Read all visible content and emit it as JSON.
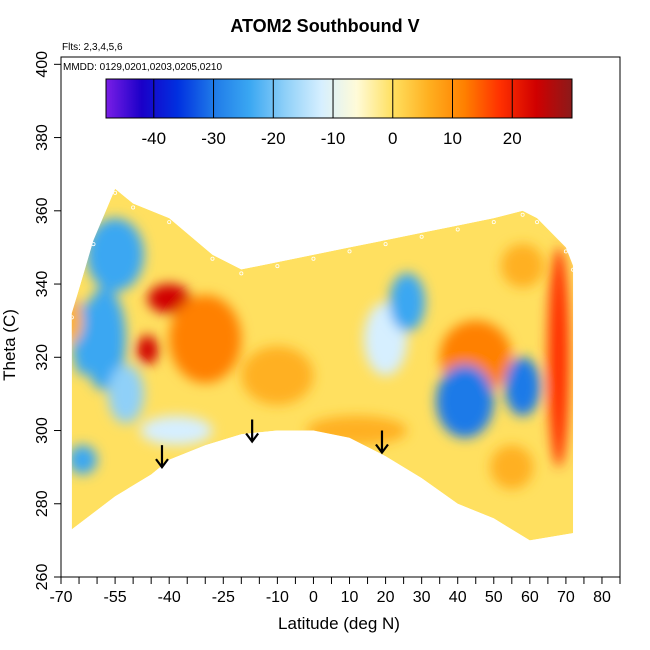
{
  "chart_data": {
    "type": "heatmap",
    "title": "ATOM2 Southbound V",
    "annotations": {
      "flights": "Flts: 2,3,4,5,6",
      "dates": "MMDD: 0129,0201,0203,0205,0210"
    },
    "xlabel": "Latitude (deg N)",
    "ylabel": "Theta (C)",
    "xlim": [
      -70,
      85
    ],
    "ylim": [
      260,
      402
    ],
    "x_ticks": [
      -70,
      -55,
      -40,
      -25,
      -10,
      0,
      10,
      20,
      30,
      40,
      50,
      60,
      70,
      80
    ],
    "x_minor_ticks": [
      -65,
      -60,
      -50,
      -45,
      -35,
      -30,
      -20,
      -15,
      -5,
      5,
      15,
      25,
      35,
      45,
      55,
      65,
      75,
      85
    ],
    "y_ticks": [
      260,
      280,
      300,
      320,
      340,
      360,
      380,
      400
    ],
    "colorbar": {
      "ticks": [
        -40,
        -30,
        -20,
        -10,
        0,
        10,
        20
      ],
      "range": [
        -48,
        30
      ],
      "colors": [
        "#7a1ee6",
        "#1a00c8",
        "#0030e0",
        "#1f7ae8",
        "#3aa7f2",
        "#8fd0f8",
        "#d6efff",
        "#fffbd8",
        "#ffe060",
        "#ffb020",
        "#ff8000",
        "#ff3000",
        "#d00000",
        "#8b1a1a"
      ]
    },
    "valid_region": {
      "top_boundary": [
        [
          -67,
          332
        ],
        [
          -61,
          352
        ],
        [
          -55,
          366
        ],
        [
          -50,
          362
        ],
        [
          -40,
          358
        ],
        [
          -28,
          348
        ],
        [
          -20,
          344
        ],
        [
          -10,
          346
        ],
        [
          0,
          348
        ],
        [
          10,
          350
        ],
        [
          20,
          352
        ],
        [
          30,
          354
        ],
        [
          40,
          356
        ],
        [
          50,
          358
        ],
        [
          58,
          360
        ],
        [
          62,
          358
        ],
        [
          70,
          350
        ],
        [
          72,
          345
        ]
      ],
      "bottom_boundary": [
        [
          -67,
          273
        ],
        [
          -55,
          282
        ],
        [
          -45,
          288
        ],
        [
          -40,
          292
        ],
        [
          -30,
          296
        ],
        [
          -20,
          299
        ],
        [
          -10,
          300
        ],
        [
          0,
          300
        ],
        [
          10,
          298
        ],
        [
          20,
          293
        ],
        [
          30,
          287
        ],
        [
          40,
          280
        ],
        [
          50,
          276
        ],
        [
          60,
          270
        ],
        [
          72,
          272
        ]
      ]
    },
    "features": [
      {
        "type": "blob",
        "center": [
          -58,
          325
        ],
        "radius": [
          6,
          14
        ],
        "value": -25
      },
      {
        "type": "blob",
        "center": [
          -55,
          348
        ],
        "radius": [
          8,
          10
        ],
        "value": -22
      },
      {
        "type": "blob",
        "center": [
          -64,
          325
        ],
        "radius": [
          3,
          10
        ],
        "value": -22
      },
      {
        "type": "blob",
        "center": [
          -52,
          310
        ],
        "radius": [
          5,
          8
        ],
        "value": -18
      },
      {
        "type": "blob",
        "center": [
          -40,
          336
        ],
        "radius": [
          6,
          4
        ],
        "value": 22
      },
      {
        "type": "blob",
        "center": [
          -46,
          322
        ],
        "radius": [
          3,
          4
        ],
        "value": 24
      },
      {
        "type": "blob",
        "center": [
          -67,
          330
        ],
        "radius": [
          3,
          6
        ],
        "value": 8
      },
      {
        "type": "blob",
        "center": [
          -64,
          292
        ],
        "radius": [
          4,
          4
        ],
        "value": -22
      },
      {
        "type": "blob",
        "center": [
          -38,
          300
        ],
        "radius": [
          10,
          4
        ],
        "value": -14
      },
      {
        "type": "blob",
        "center": [
          -30,
          325
        ],
        "radius": [
          10,
          12
        ],
        "value": 10
      },
      {
        "type": "blob",
        "center": [
          -10,
          315
        ],
        "radius": [
          10,
          8
        ],
        "value": 6
      },
      {
        "type": "blob",
        "center": [
          20,
          325
        ],
        "radius": [
          6,
          10
        ],
        "value": -14
      },
      {
        "type": "blob",
        "center": [
          26,
          335
        ],
        "radius": [
          5,
          8
        ],
        "value": -22
      },
      {
        "type": "blob",
        "center": [
          45,
          320
        ],
        "radius": [
          10,
          10
        ],
        "value": 12
      },
      {
        "type": "blob",
        "center": [
          42,
          308
        ],
        "radius": [
          8,
          10
        ],
        "value": -32
      },
      {
        "type": "blob",
        "center": [
          58,
          312
        ],
        "radius": [
          5,
          8
        ],
        "value": -30
      },
      {
        "type": "blob",
        "center": [
          55,
          290
        ],
        "radius": [
          6,
          6
        ],
        "value": 6
      },
      {
        "type": "blob",
        "center": [
          68,
          320
        ],
        "radius": [
          3,
          30
        ],
        "value": 18
      },
      {
        "type": "blob",
        "center": [
          12,
          300
        ],
        "radius": [
          14,
          4
        ],
        "value": 8
      },
      {
        "type": "blob",
        "center": [
          58,
          345
        ],
        "radius": [
          6,
          6
        ],
        "value": 8
      }
    ],
    "arrows": [
      {
        "latitude": -42,
        "theta": 290
      },
      {
        "latitude": -17,
        "theta": 297
      },
      {
        "latitude": 19,
        "theta": 294
      }
    ]
  }
}
